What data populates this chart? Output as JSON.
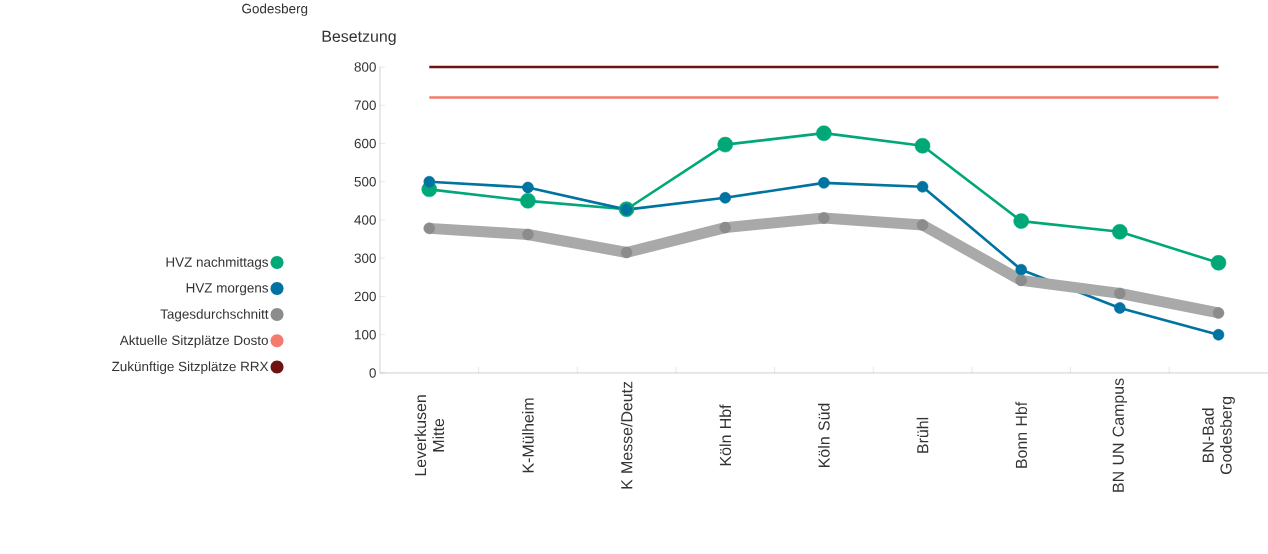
{
  "chart_data": {
    "type": "line",
    "ylabel": "Besetzung",
    "annotations": [
      "Godesberg"
    ],
    "categories": [
      "Leverkusen Mitte",
      "K-Mülheim",
      "K Messe/Deutz",
      "Köln Hbf",
      "Köln Süd",
      "Brühl",
      "Bonn Hbf",
      "BN UN Campus",
      "BN-Bad Godesberg"
    ],
    "ylim": [
      0,
      800
    ],
    "yticks": [
      0,
      100,
      200,
      300,
      400,
      500,
      600,
      700,
      800
    ],
    "grid": false,
    "legend": "left",
    "marker": "circle",
    "series": [
      {
        "name": "HVZ nachmittags",
        "color": "#00a878",
        "values": [
          480,
          450,
          428,
          597,
          627,
          594,
          397,
          369,
          288
        ]
      },
      {
        "name": "HVZ morgens",
        "color": "#0073a0",
        "values": [
          500,
          485,
          427,
          458,
          497,
          487,
          270,
          170,
          100
        ]
      },
      {
        "name": "Tagesdurchschnitt",
        "color": "#8c8c8c",
        "values": [
          378,
          362,
          315,
          380,
          405,
          387,
          242,
          208,
          157
        ]
      },
      {
        "name": "Aktuelle Sitzplätze Dosto",
        "color": "#f27b6d",
        "marker": "none",
        "values": [
          720,
          720,
          720,
          720,
          720,
          720,
          720,
          720,
          720
        ]
      },
      {
        "name": "Zukünftige Sitzplätze RRX",
        "color": "#6e1212",
        "marker": "none",
        "values": [
          800,
          800,
          800,
          800,
          800,
          800,
          800,
          800,
          800
        ]
      }
    ]
  }
}
